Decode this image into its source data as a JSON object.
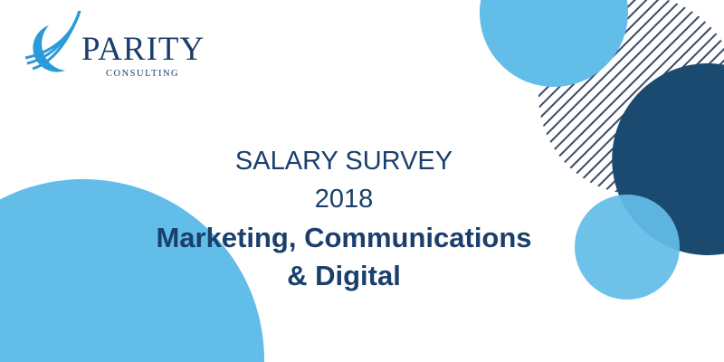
{
  "brand": {
    "name": "PARITY",
    "tagline": "CONSULTING"
  },
  "headline": {
    "line1": "SALARY SURVEY",
    "line2": "2018",
    "line3": "Marketing, Communications",
    "line4": "& Digital"
  },
  "colors": {
    "light_blue": "#62bde8",
    "navy": "#1b4a70",
    "text": "#1b3f6b"
  }
}
